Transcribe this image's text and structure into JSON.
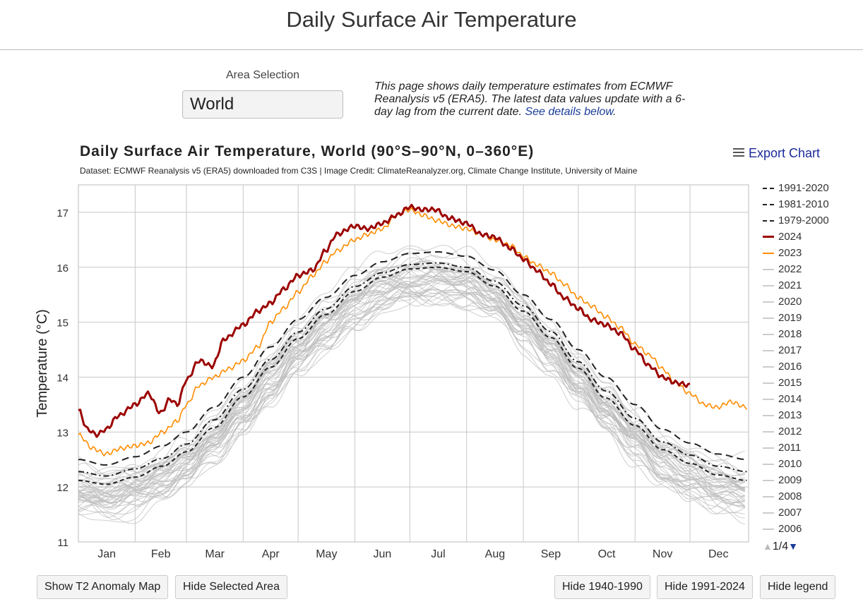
{
  "page": {
    "title": "Daily Surface Air Temperature",
    "area_selection_label": "Area Selection",
    "area_selection_value": "World",
    "intro_text": "This page shows daily temperature estimates from ECMWF Reanalysis v5 (ERA5). The latest data values update with a 6-day lag from the current date. ",
    "intro_link": "See details below",
    "intro_end": "."
  },
  "chart_header": {
    "title": "Daily Surface Air Temperature, World (90°S–90°N, 0–360°E)",
    "subtitle": "Dataset: ECMWF Reanalysis v5 (ERA5) downloaded from C3S | Image Credit: ClimateReanalyzer.org, Climate Change Institute, University of Maine",
    "export_label": "Export Chart"
  },
  "legend": {
    "items": [
      {
        "label": "1991-2020",
        "color": "#222222",
        "style": "longdash"
      },
      {
        "label": "1981-2010",
        "color": "#222222",
        "style": "dashdot"
      },
      {
        "label": "1979-2000",
        "color": "#222222",
        "style": "dash"
      },
      {
        "label": "2024",
        "color": "#9b0000",
        "style": "solid"
      },
      {
        "label": "2023",
        "color": "#ff8c00",
        "style": "solid"
      },
      {
        "label": "2022",
        "color": "#cccccc",
        "style": "solid"
      },
      {
        "label": "2021",
        "color": "#cccccc",
        "style": "solid"
      },
      {
        "label": "2020",
        "color": "#cccccc",
        "style": "solid"
      },
      {
        "label": "2019",
        "color": "#cccccc",
        "style": "solid"
      },
      {
        "label": "2018",
        "color": "#cccccc",
        "style": "solid"
      },
      {
        "label": "2017",
        "color": "#cccccc",
        "style": "solid"
      },
      {
        "label": "2016",
        "color": "#cccccc",
        "style": "solid"
      },
      {
        "label": "2015",
        "color": "#cccccc",
        "style": "solid"
      },
      {
        "label": "2014",
        "color": "#cccccc",
        "style": "solid"
      },
      {
        "label": "2013",
        "color": "#cccccc",
        "style": "solid"
      },
      {
        "label": "2012",
        "color": "#cccccc",
        "style": "solid"
      },
      {
        "label": "2011",
        "color": "#cccccc",
        "style": "solid"
      },
      {
        "label": "2010",
        "color": "#cccccc",
        "style": "solid"
      },
      {
        "label": "2009",
        "color": "#cccccc",
        "style": "solid"
      },
      {
        "label": "2008",
        "color": "#cccccc",
        "style": "solid"
      },
      {
        "label": "2007",
        "color": "#cccccc",
        "style": "solid"
      },
      {
        "label": "2006",
        "color": "#cccccc",
        "style": "solid"
      }
    ],
    "pager": "1/4"
  },
  "buttons": {
    "show_anomaly": "Show T2 Anomaly Map",
    "hide_area": "Hide Selected Area",
    "hide_1940": "Hide 1940-1990",
    "hide_1991": "Hide 1991-2024",
    "hide_legend": "Hide legend"
  },
  "chart_data": {
    "type": "line",
    "title": "Daily Surface Air Temperature, World (90°S–90°N, 0–360°E)",
    "xlabel": "",
    "ylabel": "Temperature (°C)",
    "ylim": [
      11,
      17.5
    ],
    "yticks": [
      11,
      12,
      13,
      14,
      15,
      16,
      17
    ],
    "xlim": [
      0,
      366
    ],
    "month_labels": [
      "Jan",
      "Feb",
      "Mar",
      "Apr",
      "May",
      "Jun",
      "Jul",
      "Aug",
      "Sep",
      "Oct",
      "Nov",
      "Dec"
    ],
    "x_unit": "day of year",
    "series": [
      {
        "name": "1991-2020",
        "color": "#222222",
        "style": "longdash",
        "x": [
          0,
          15,
          31,
          46,
          59,
          74,
          90,
          105,
          120,
          135,
          151,
          166,
          181,
          196,
          212,
          227,
          243,
          258,
          273,
          288,
          304,
          319,
          334,
          349,
          365
        ],
        "y": [
          12.5,
          12.4,
          12.55,
          12.75,
          13.0,
          13.45,
          14.0,
          14.55,
          15.05,
          15.45,
          15.85,
          16.1,
          16.25,
          16.28,
          16.2,
          15.95,
          15.5,
          15.05,
          14.5,
          14.0,
          13.5,
          13.05,
          12.8,
          12.6,
          12.5
        ]
      },
      {
        "name": "1981-2010",
        "color": "#222222",
        "style": "dashdot",
        "x": [
          0,
          15,
          31,
          46,
          59,
          74,
          90,
          105,
          120,
          135,
          151,
          166,
          181,
          196,
          212,
          227,
          243,
          258,
          273,
          288,
          304,
          319,
          334,
          349,
          365
        ],
        "y": [
          12.28,
          12.2,
          12.33,
          12.52,
          12.78,
          13.22,
          13.78,
          14.32,
          14.82,
          15.24,
          15.65,
          15.9,
          16.05,
          16.08,
          16.0,
          15.75,
          15.3,
          14.83,
          14.28,
          13.75,
          13.25,
          12.82,
          12.58,
          12.38,
          12.28
        ]
      },
      {
        "name": "1979-2000",
        "color": "#222222",
        "style": "dash",
        "x": [
          0,
          15,
          31,
          46,
          59,
          74,
          90,
          105,
          120,
          135,
          151,
          166,
          181,
          196,
          212,
          227,
          243,
          258,
          273,
          288,
          304,
          319,
          334,
          349,
          365
        ],
        "y": [
          12.12,
          12.05,
          12.18,
          12.38,
          12.64,
          13.08,
          13.64,
          14.18,
          14.7,
          15.14,
          15.56,
          15.82,
          15.97,
          16.0,
          15.92,
          15.66,
          15.2,
          14.72,
          14.16,
          13.62,
          13.12,
          12.68,
          12.43,
          12.22,
          12.12
        ]
      },
      {
        "name": "2024",
        "color": "#9b0000",
        "style": "solid",
        "x": [
          0,
          5,
          10,
          15,
          22,
          31,
          38,
          45,
          50,
          54,
          59,
          66,
          73,
          80,
          90,
          98,
          105,
          112,
          120,
          128,
          135,
          141,
          151,
          158,
          166,
          174,
          181,
          187,
          195,
          202,
          212,
          220,
          227,
          236,
          243,
          250,
          258,
          265,
          273,
          280,
          288,
          296,
          304,
          312,
          319,
          326,
          334
        ],
        "y": [
          13.4,
          13.05,
          12.95,
          13.05,
          13.3,
          13.5,
          13.7,
          13.35,
          13.6,
          13.5,
          13.95,
          14.3,
          14.2,
          14.7,
          14.95,
          15.2,
          15.35,
          15.6,
          15.85,
          15.95,
          16.3,
          16.6,
          16.75,
          16.7,
          16.8,
          16.95,
          17.1,
          17.05,
          17.05,
          16.9,
          16.8,
          16.6,
          16.55,
          16.35,
          16.15,
          15.95,
          15.7,
          15.45,
          15.25,
          15.05,
          14.95,
          14.8,
          14.5,
          14.2,
          14.0,
          13.9,
          13.85
        ]
      },
      {
        "name": "2023",
        "color": "#ff8c00",
        "style": "solid",
        "x": [
          0,
          8,
          15,
          23,
          31,
          38,
          46,
          54,
          59,
          66,
          74,
          82,
          90,
          98,
          105,
          112,
          120,
          128,
          135,
          141,
          151,
          158,
          166,
          174,
          181,
          188,
          196,
          205,
          212,
          220,
          227,
          236,
          243,
          250,
          258,
          265,
          273,
          280,
          288,
          296,
          304,
          312,
          319,
          326,
          334,
          342,
          349,
          356,
          365
        ],
        "y": [
          12.95,
          12.7,
          12.6,
          12.7,
          12.75,
          12.8,
          13.0,
          13.2,
          13.5,
          13.85,
          14.0,
          14.15,
          14.3,
          14.55,
          15.0,
          15.25,
          15.55,
          15.85,
          16.1,
          16.3,
          16.5,
          16.6,
          16.7,
          16.95,
          17.05,
          16.95,
          16.85,
          16.75,
          16.7,
          16.6,
          16.5,
          16.4,
          16.2,
          16.05,
          15.9,
          15.7,
          15.45,
          15.3,
          15.1,
          14.9,
          14.6,
          14.4,
          14.15,
          13.9,
          13.7,
          13.5,
          13.45,
          13.55,
          13.45
        ]
      }
    ]
  }
}
